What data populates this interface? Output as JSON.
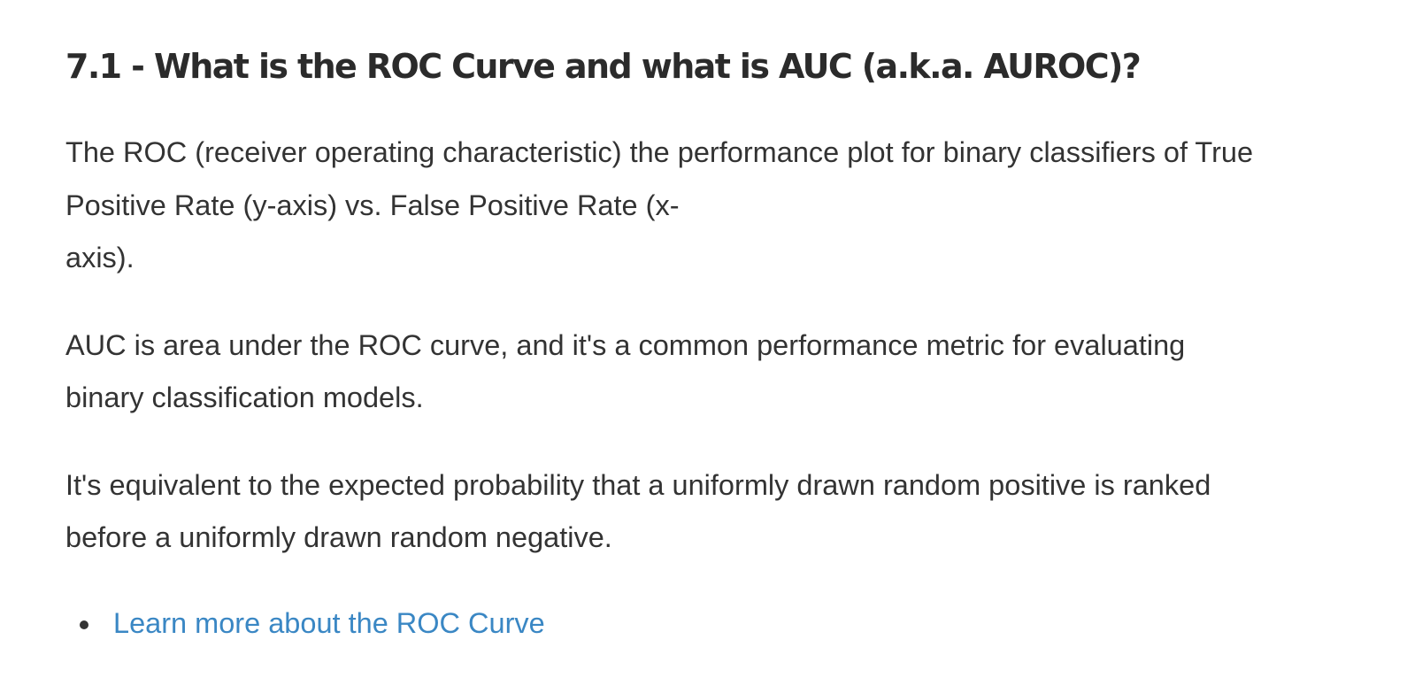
{
  "heading": "7.1 - What is the ROC Curve and what is AUC (a.k.a. AUROC)?",
  "paragraphs": [
    {
      "lines": [
        "The ROC (receiver operating characteristic) the performance plot for binary classifiers of True",
        "Positive Rate (y-axis) vs. False Positive Rate (x-",
        "axis)."
      ]
    },
    {
      "lines": [
        "AUC is area under the ROC curve, and it's a common performance metric for evaluating",
        "binary classification models."
      ]
    },
    {
      "lines": [
        "It's equivalent to the expected probability that a uniformly drawn random positive is ranked",
        "before a uniformly drawn random negative."
      ]
    }
  ],
  "links": [
    {
      "label": "Learn more about the ROC Curve"
    }
  ],
  "colors": {
    "text": "#333333",
    "heading": "#2b2b2b",
    "link": "#3a87c4",
    "background": "#ffffff"
  }
}
